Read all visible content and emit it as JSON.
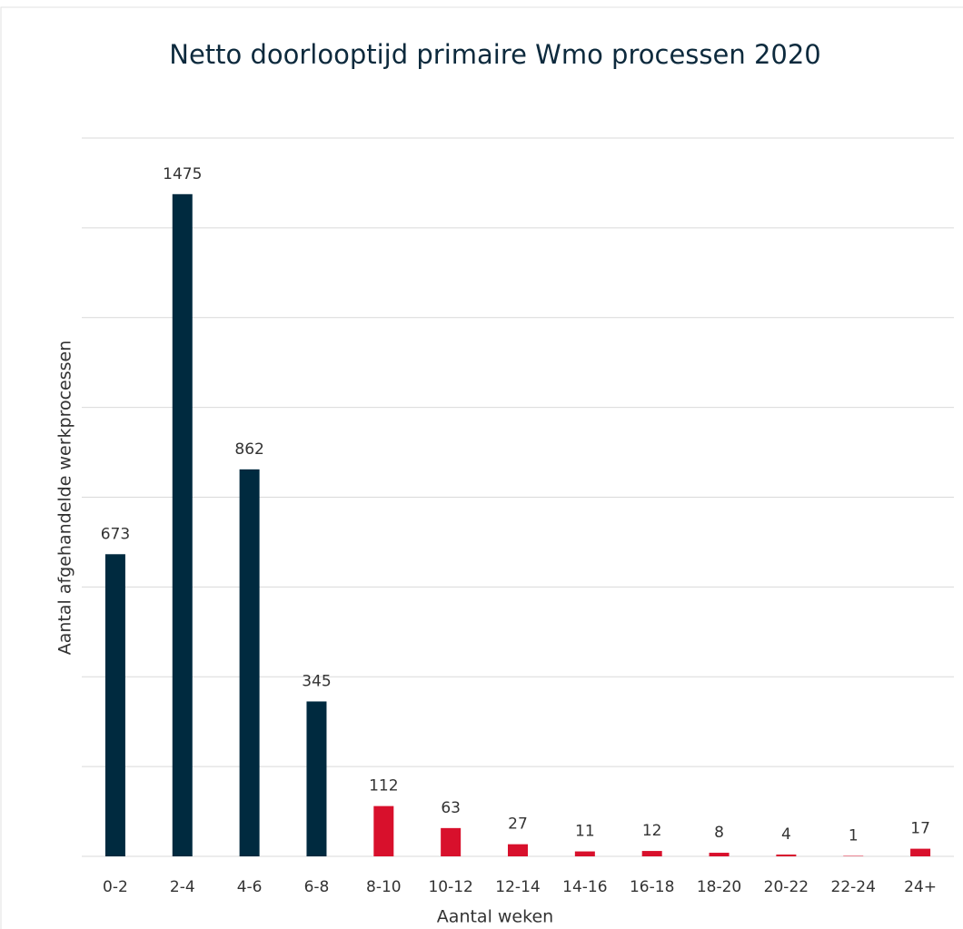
{
  "chart_data": {
    "type": "bar",
    "title": "Netto doorlooptijd primaire Wmo processen 2020",
    "xlabel": "Aantal weken",
    "ylabel": "Aantal afgehandelde werkprocessen",
    "categories": [
      "0-2",
      "2-4",
      "4-6",
      "6-8",
      "8-10",
      "10-12",
      "12-14",
      "14-16",
      "16-18",
      "18-20",
      "20-22",
      "22-24",
      "24+"
    ],
    "values": [
      673,
      1475,
      862,
      345,
      112,
      63,
      27,
      11,
      12,
      8,
      4,
      1,
      17
    ],
    "colors": [
      "#002a3f",
      "#002a3f",
      "#002a3f",
      "#002a3f",
      "#d8102c",
      "#d8102c",
      "#d8102c",
      "#d8102c",
      "#d8102c",
      "#d8102c",
      "#d8102c",
      "#d8102c",
      "#d8102c"
    ],
    "ylim": [
      0,
      1600
    ],
    "yticks": [
      0,
      200,
      400,
      600,
      800,
      1000,
      1200,
      1400,
      1600
    ],
    "grid": true
  }
}
